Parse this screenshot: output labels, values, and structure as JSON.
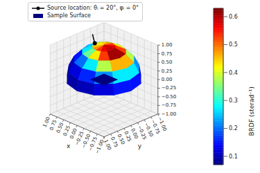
{
  "chart_data": {
    "type": "surface3d",
    "xlabel": "x",
    "ylabel": "y",
    "xlim": [
      -1,
      1
    ],
    "ylim": [
      -1,
      1
    ],
    "zlim": [
      -1,
      1
    ],
    "xticks": [
      {
        "value": -1,
        "label": "−1.00"
      },
      {
        "value": -0.75,
        "label": "−0.75"
      },
      {
        "value": -0.5,
        "label": "−0.50"
      },
      {
        "value": -0.25,
        "label": "−0.25"
      },
      {
        "value": 0,
        "label": "0.00"
      },
      {
        "value": 0.25,
        "label": "0.25"
      },
      {
        "value": 0.5,
        "label": "0.50"
      },
      {
        "value": 0.75,
        "label": "0.75"
      },
      {
        "value": 1,
        "label": "1.00"
      }
    ],
    "yticks": [
      {
        "value": -1,
        "label": "−1.00"
      },
      {
        "value": -0.75,
        "label": "−0.75"
      },
      {
        "value": -0.5,
        "label": "−0.50"
      },
      {
        "value": -0.25,
        "label": "−0.25"
      },
      {
        "value": 0,
        "label": "0.00"
      },
      {
        "value": 0.25,
        "label": "0.25"
      },
      {
        "value": 0.5,
        "label": "0.50"
      },
      {
        "value": 0.75,
        "label": "0.75"
      },
      {
        "value": 1,
        "label": "1.00"
      }
    ],
    "zticks": [
      {
        "value": -1,
        "label": "−1.00"
      },
      {
        "value": -0.75,
        "label": "−0.75"
      },
      {
        "value": -0.5,
        "label": "−0.50"
      },
      {
        "value": -0.25,
        "label": "−0.25"
      },
      {
        "value": 0,
        "label": "0.00"
      },
      {
        "value": 0.25,
        "label": "0.25"
      },
      {
        "value": 0.5,
        "label": "0.50"
      },
      {
        "value": 0.75,
        "label": "0.75"
      },
      {
        "value": 1,
        "label": "1.00"
      }
    ],
    "theta_edges": [
      0,
      18,
      36,
      54,
      72,
      90
    ],
    "phi_edges": [
      0,
      30,
      60,
      90,
      120,
      150,
      180,
      210,
      240,
      270,
      300,
      330,
      360
    ],
    "cells": [
      [
        0.43,
        0.45,
        0.48,
        0.53,
        0.57,
        0.59,
        0.59,
        0.57,
        0.53,
        0.48,
        0.45,
        0.43
      ],
      [
        0.25,
        0.27,
        0.34,
        0.43,
        0.53,
        0.61,
        0.61,
        0.53,
        0.43,
        0.34,
        0.27,
        0.25
      ],
      [
        0.13,
        0.15,
        0.2,
        0.27,
        0.38,
        0.46,
        0.46,
        0.38,
        0.27,
        0.2,
        0.15,
        0.13
      ],
      [
        0.09,
        0.1,
        0.12,
        0.16,
        0.22,
        0.27,
        0.27,
        0.22,
        0.16,
        0.12,
        0.1,
        0.09
      ],
      [
        0.08,
        0.08,
        0.09,
        0.1,
        0.12,
        0.15,
        0.15,
        0.12,
        0.1,
        0.09,
        0.08,
        0.08
      ]
    ],
    "colorbar": {
      "label": "BRDF (sterad⁻¹)",
      "range": [
        0.07,
        0.63
      ],
      "ticks": [
        0.1,
        0.2,
        0.3,
        0.4,
        0.5,
        0.6
      ]
    },
    "series": [
      {
        "name": "Source location: θᵢ = 20°, φᵢ = 0°",
        "type": "line",
        "marker": "circle",
        "line_style": "solid",
        "color": "#000000",
        "theta": 20,
        "phi": 0
      },
      {
        "name": "Sample Surface",
        "type": "surface",
        "color": "#00007f"
      }
    ],
    "legend": "top"
  }
}
